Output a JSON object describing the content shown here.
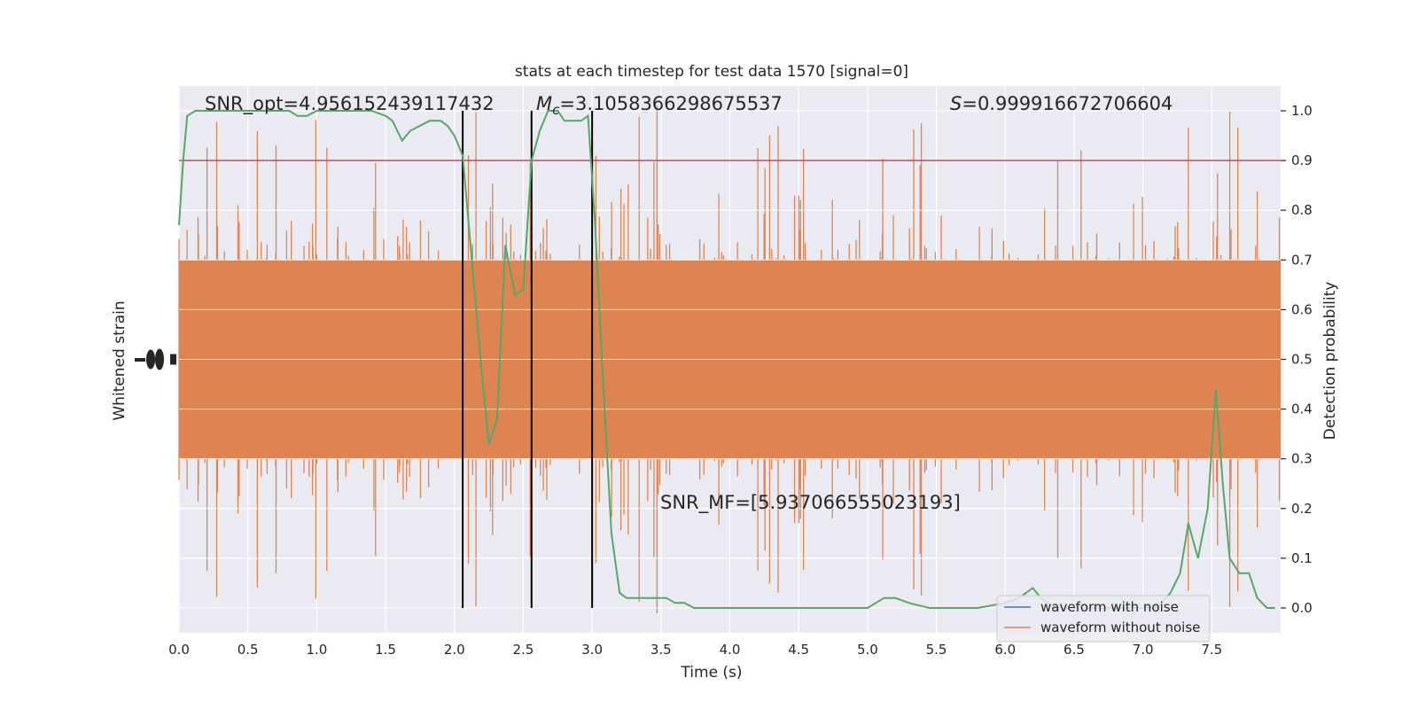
{
  "chart_data": {
    "type": "line",
    "title": "stats at each timestep for test data 1570 [signal=0]",
    "xlabel": "Time (s)",
    "ylabel_left": "Whitened strain",
    "ylabel_right": "Detection probability",
    "xlim": [
      0,
      8
    ],
    "ylim_right": [
      -0.05,
      1.05
    ],
    "x_ticks": [
      0.0,
      0.5,
      1.0,
      1.5,
      2.0,
      2.5,
      3.0,
      3.5,
      4.0,
      4.5,
      5.0,
      5.5,
      6.0,
      6.5,
      7.0,
      7.5
    ],
    "x_tick_labels": [
      "0.0",
      "0.5",
      "1.0",
      "1.5",
      "2.0",
      "2.5",
      "3.0",
      "3.5",
      "4.0",
      "4.5",
      "5.0",
      "5.5",
      "6.0",
      "6.5",
      "7.0",
      "7.5"
    ],
    "y_right_ticks": [
      0.0,
      0.1,
      0.2,
      0.3,
      0.4,
      0.5,
      0.6,
      0.7,
      0.8,
      0.9,
      1.0
    ],
    "y_right_tick_labels": [
      "0.0",
      "0.1",
      "0.2",
      "0.3",
      "0.4",
      "0.5",
      "0.6",
      "0.7",
      "0.8",
      "0.9",
      "1.0"
    ],
    "grid": true,
    "legend": "lower-right",
    "annotations": {
      "snr_opt": "SNR_opt=4.956152439117432",
      "mc_symbol": "M",
      "mc_subscript": "c",
      "mc_value": "=3.1058366298675537",
      "s_symbol": "S",
      "s_value": "=0.999916672706604",
      "snr_mf": "SNR_MF=[5.937066555023193]"
    },
    "threshold": {
      "y": 0.9,
      "color": "#c44e52"
    },
    "vertical_lines": [
      2.06,
      2.56,
      3.0
    ],
    "series": [
      {
        "name": "waveform with noise",
        "color": "#4c72b0",
        "kind": "strain"
      },
      {
        "name": "waveform without noise",
        "color": "#dd8452",
        "kind": "strain"
      },
      {
        "color": "#55a868",
        "kind": "probability",
        "x": [
          0.0,
          0.03,
          0.06,
          0.12,
          0.2,
          0.3,
          0.4,
          0.5,
          0.6,
          0.7,
          0.8,
          0.86,
          0.93,
          1.0,
          1.1,
          1.2,
          1.3,
          1.4,
          1.5,
          1.55,
          1.62,
          1.68,
          1.75,
          1.82,
          1.9,
          1.95,
          2.0,
          2.06,
          2.12,
          2.2,
          2.25,
          2.31,
          2.37,
          2.44,
          2.5,
          2.56,
          2.62,
          2.68,
          2.75,
          2.8,
          2.86,
          2.92,
          2.97,
          3.02,
          3.08,
          3.14,
          3.2,
          3.25,
          3.33,
          3.4,
          3.47,
          3.54,
          3.6,
          3.67,
          3.74,
          3.8,
          3.9,
          4.0,
          4.1,
          4.2,
          4.3,
          4.5,
          4.7,
          4.9,
          5.0,
          5.06,
          5.12,
          5.2,
          5.3,
          5.45,
          5.6,
          5.8,
          6.0,
          6.1,
          6.2,
          6.26,
          6.35,
          6.5,
          6.7,
          6.9,
          7.1,
          7.2,
          7.27,
          7.33,
          7.4,
          7.47,
          7.53,
          7.58,
          7.63,
          7.7,
          7.77,
          7.83,
          7.9,
          7.96
        ],
        "y": [
          0.77,
          0.9,
          0.99,
          1.0,
          1.0,
          1.0,
          1.0,
          1.0,
          1.0,
          1.0,
          1.0,
          0.99,
          0.99,
          1.0,
          1.0,
          1.0,
          1.0,
          1.0,
          0.99,
          0.98,
          0.94,
          0.96,
          0.97,
          0.98,
          0.98,
          0.97,
          0.95,
          0.91,
          0.72,
          0.47,
          0.33,
          0.38,
          0.73,
          0.63,
          0.64,
          0.9,
          0.96,
          1.0,
          1.0,
          0.98,
          0.98,
          0.98,
          0.99,
          0.78,
          0.45,
          0.15,
          0.03,
          0.02,
          0.02,
          0.02,
          0.02,
          0.02,
          0.01,
          0.01,
          0.0,
          0.0,
          0.0,
          0.0,
          0.0,
          0.0,
          0.0,
          0.0,
          0.0,
          0.0,
          0.0,
          0.01,
          0.02,
          0.02,
          0.01,
          0.0,
          0.0,
          0.0,
          0.01,
          0.02,
          0.04,
          0.02,
          0.0,
          0.0,
          0.0,
          0.0,
          0.0,
          0.03,
          0.07,
          0.17,
          0.1,
          0.2,
          0.44,
          0.25,
          0.1,
          0.07,
          0.07,
          0.02,
          0.0,
          0.0
        ]
      }
    ]
  }
}
